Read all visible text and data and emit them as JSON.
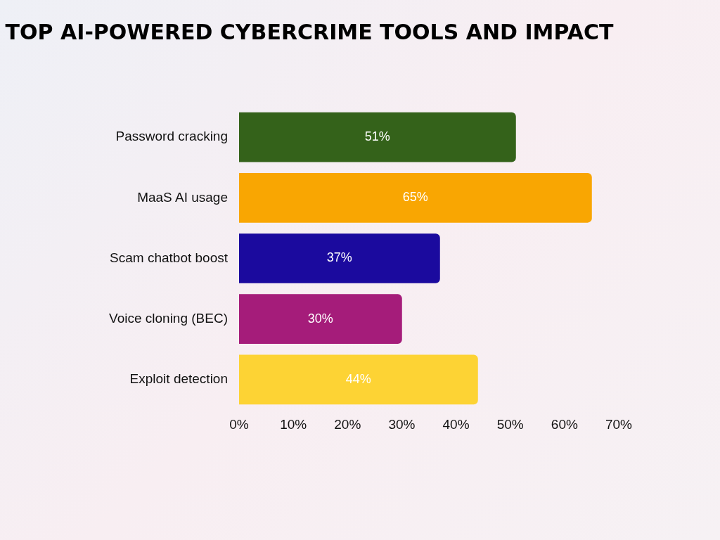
{
  "chart_data": {
    "type": "bar",
    "orientation": "horizontal",
    "title": "TOP AI-POWERED CYBERCRIME TOOLS AND IMPACT",
    "categories": [
      "Password cracking",
      "MaaS AI usage",
      "Scam chatbot boost",
      "Voice cloning (BEC)",
      "Exploit detection"
    ],
    "values": [
      51,
      65,
      37,
      30,
      44
    ],
    "colors": [
      "#34621a",
      "#f9a602",
      "#1b0a9e",
      "#a51c7a",
      "#fdd334"
    ],
    "value_labels": [
      "51%",
      "65%",
      "37%",
      "30%",
      "44%"
    ],
    "xlim": [
      0,
      70
    ],
    "xticks": [
      {
        "value": 0,
        "label": "0%"
      },
      {
        "value": 10,
        "label": "10%"
      },
      {
        "value": 20,
        "label": "20%"
      },
      {
        "value": 30,
        "label": "30%"
      },
      {
        "value": 40,
        "label": "40%"
      },
      {
        "value": 50,
        "label": "50%"
      },
      {
        "value": 60,
        "label": "60%"
      },
      {
        "value": 70,
        "label": "70%"
      }
    ],
    "grid": false,
    "legend": false
  }
}
